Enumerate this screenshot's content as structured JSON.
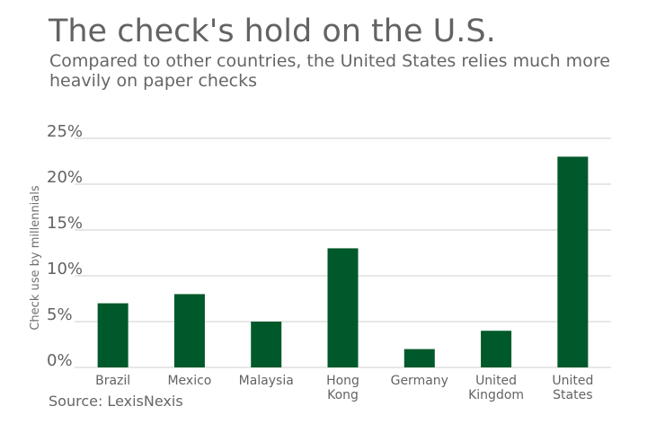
{
  "title": "The check's hold on the U.S.",
  "subtitle": "Compared to other countries, the United States relies much more heavily on paper checks",
  "source": "Source: LexisNexis",
  "colors": {
    "bar": "#00592a",
    "gridline": "#cfcfcf",
    "text": "#636363"
  },
  "chart_data": {
    "type": "bar",
    "categories": [
      [
        "Brazil"
      ],
      [
        "Mexico"
      ],
      [
        "Malaysia"
      ],
      [
        "Hong",
        "Kong"
      ],
      [
        "Germany"
      ],
      [
        "United",
        "Kingdom"
      ],
      [
        "United",
        "States"
      ]
    ],
    "values": [
      7,
      8,
      5,
      13,
      2,
      4,
      23
    ],
    "ylabel": "Check use by millennials",
    "ylim": [
      0,
      25
    ],
    "yticks": [
      "0%",
      "5%",
      "10%",
      "15%",
      "20%",
      "25%"
    ],
    "grid": true
  }
}
